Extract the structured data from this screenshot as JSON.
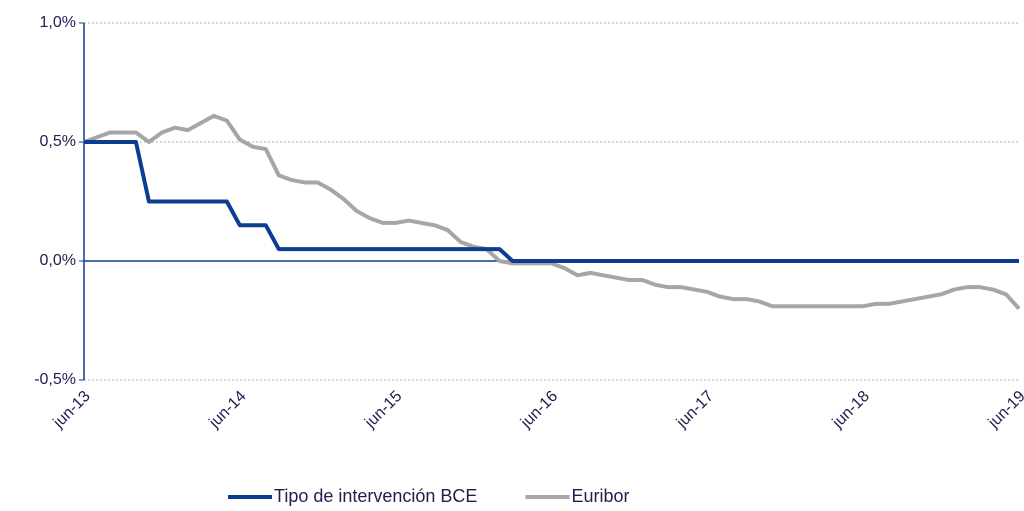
{
  "chart_data": {
    "type": "line",
    "categories": [
      "jun-13",
      null,
      null,
      null,
      null,
      null,
      null,
      null,
      null,
      null,
      null,
      null,
      "jun-14",
      null,
      null,
      null,
      null,
      null,
      null,
      null,
      null,
      null,
      null,
      null,
      "jun-15",
      null,
      null,
      null,
      null,
      null,
      null,
      null,
      null,
      null,
      null,
      null,
      "jun-16",
      null,
      null,
      null,
      null,
      null,
      null,
      null,
      null,
      null,
      null,
      null,
      "jun-17",
      null,
      null,
      null,
      null,
      null,
      null,
      null,
      null,
      null,
      null,
      null,
      "jun-18",
      null,
      null,
      null,
      null,
      null,
      null,
      null,
      null,
      null,
      null,
      null,
      "jun-19"
    ],
    "series": [
      {
        "name": "Tipo de intervención BCE",
        "color": "#0b3d91",
        "values": [
          0.5,
          0.5,
          0.5,
          0.5,
          0.5,
          0.25,
          0.25,
          0.25,
          0.25,
          0.25,
          0.25,
          0.25,
          0.15,
          0.15,
          0.15,
          0.05,
          0.05,
          0.05,
          0.05,
          0.05,
          0.05,
          0.05,
          0.05,
          0.05,
          0.05,
          0.05,
          0.05,
          0.05,
          0.05,
          0.05,
          0.05,
          0.05,
          0.05,
          0,
          0,
          0,
          0,
          0,
          0,
          0,
          0,
          0,
          0,
          0,
          0,
          0,
          0,
          0,
          0,
          0,
          0,
          0,
          0,
          0,
          0,
          0,
          0,
          0,
          0,
          0,
          0,
          0,
          0,
          0,
          0,
          0,
          0,
          0,
          0,
          0,
          0,
          0,
          0
        ]
      },
      {
        "name": "Euribor",
        "color": "#a6a6a6",
        "values": [
          0.5,
          0.52,
          0.54,
          0.54,
          0.54,
          0.5,
          0.54,
          0.56,
          0.55,
          0.58,
          0.61,
          0.59,
          0.51,
          0.48,
          0.47,
          0.36,
          0.34,
          0.33,
          0.33,
          0.3,
          0.26,
          0.21,
          0.18,
          0.16,
          0.16,
          0.17,
          0.16,
          0.15,
          0.13,
          0.08,
          0.06,
          0.05,
          0.0,
          -0.01,
          -0.01,
          -0.01,
          -0.01,
          -0.03,
          -0.06,
          -0.05,
          -0.06,
          -0.07,
          -0.08,
          -0.08,
          -0.1,
          -0.11,
          -0.11,
          -0.12,
          -0.13,
          -0.15,
          -0.16,
          -0.16,
          -0.17,
          -0.19,
          -0.19,
          -0.19,
          -0.19,
          -0.19,
          -0.19,
          -0.19,
          -0.19,
          -0.18,
          -0.18,
          -0.17,
          -0.16,
          -0.15,
          -0.14,
          -0.12,
          -0.11,
          -0.11,
          -0.12,
          -0.14,
          -0.2
        ]
      }
    ],
    "ylim": [
      -0.5,
      1.0
    ],
    "yticks": [
      {
        "value": -0.5,
        "label": "-0,5%"
      },
      {
        "value": 0,
        "label": "0,0%"
      },
      {
        "value": 0.5,
        "label": "0,5%"
      },
      {
        "value": 1.0,
        "label": "1,0%"
      }
    ],
    "grid": true,
    "legend": "bottom"
  }
}
